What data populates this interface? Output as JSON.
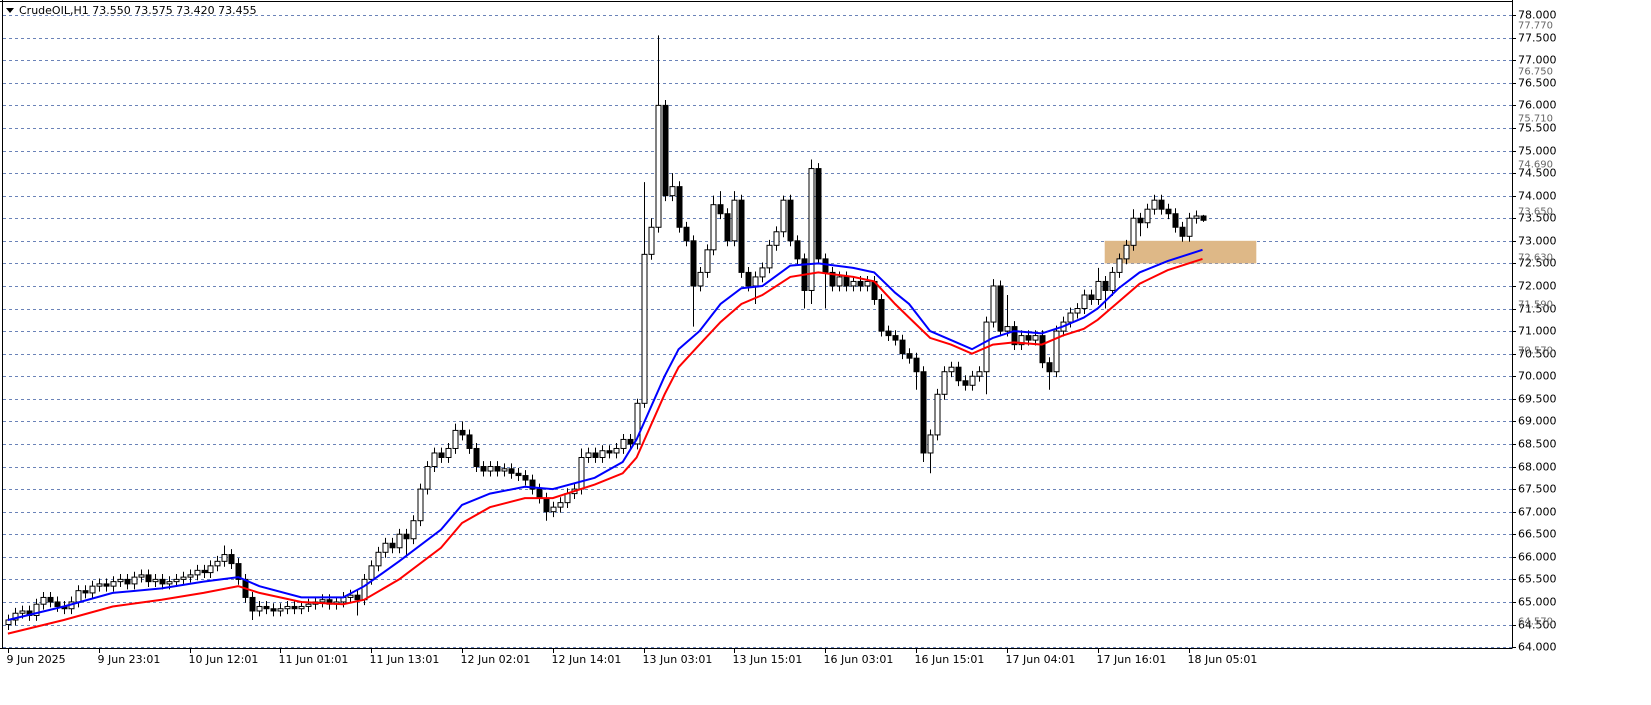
{
  "chart_data": {
    "type": "candlestick",
    "title": "CrudeOIL,H1  73.550 73.575 73.420 73.455",
    "up_color": "#ffffff",
    "down_color": "#000000",
    "outline_color": "#000000",
    "grid": true,
    "xlim": [
      -0.7,
      215.3
    ],
    "ylim": [
      63.98,
      78.29
    ],
    "xticks": [
      {
        "value": 0,
        "label": "9 Jun 2025"
      },
      {
        "value": 13,
        "label": "9 Jun 23:01"
      },
      {
        "value": 26,
        "label": "10 Jun 12:01"
      },
      {
        "value": 39,
        "label": "11 Jun 01:01"
      },
      {
        "value": 52,
        "label": "11 Jun 13:01"
      },
      {
        "value": 65,
        "label": "12 Jun 02:01"
      },
      {
        "value": 78,
        "label": "12 Jun 14:01"
      },
      {
        "value": 91,
        "label": "13 Jun 03:01"
      },
      {
        "value": 104,
        "label": "13 Jun 15:01"
      },
      {
        "value": 117,
        "label": "16 Jun 03:01"
      },
      {
        "value": 130,
        "label": "16 Jun 15:01"
      },
      {
        "value": 143,
        "label": "17 Jun 04:01"
      },
      {
        "value": 156,
        "label": "17 Jun 16:01"
      },
      {
        "value": 169,
        "label": "18 Jun 05:01"
      }
    ],
    "yticks": [
      {
        "value": 78,
        "label": "78.000"
      },
      {
        "value": 77.5,
        "label": "77.500"
      },
      {
        "value": 77,
        "label": "77.000"
      },
      {
        "value": 76.5,
        "label": "76.500"
      },
      {
        "value": 76,
        "label": "76.000"
      },
      {
        "value": 75.5,
        "label": "75.500"
      },
      {
        "value": 75,
        "label": "75.000"
      },
      {
        "value": 74.5,
        "label": "74.500"
      },
      {
        "value": 74,
        "label": "74.000"
      },
      {
        "value": 73.5,
        "label": "73.500"
      },
      {
        "value": 73,
        "label": "73.000"
      },
      {
        "value": 72.5,
        "label": "72.500"
      },
      {
        "value": 72,
        "label": "72.000"
      },
      {
        "value": 71.5,
        "label": "71.500"
      },
      {
        "value": 71,
        "label": "71.000"
      },
      {
        "value": 70.5,
        "label": "70.500"
      },
      {
        "value": 70,
        "label": "70.000"
      },
      {
        "value": 69.5,
        "label": "69.500"
      },
      {
        "value": 69,
        "label": "69.000"
      },
      {
        "value": 68.5,
        "label": "68.500"
      },
      {
        "value": 68,
        "label": "68.000"
      },
      {
        "value": 67.5,
        "label": "67.500"
      },
      {
        "value": 67,
        "label": "67.000"
      },
      {
        "value": 66.5,
        "label": "66.500"
      },
      {
        "value": 66,
        "label": "66.000"
      },
      {
        "value": 65.5,
        "label": "65.500"
      },
      {
        "value": 65,
        "label": "65.000"
      },
      {
        "value": 64.5,
        "label": "64.500"
      },
      {
        "value": 64,
        "label": "64.000"
      }
    ],
    "levels": [
      {
        "value": 77.77,
        "label": "77.770"
      },
      {
        "value": 76.75,
        "label": "76.750"
      },
      {
        "value": 75.71,
        "label": "75.710"
      },
      {
        "value": 74.69,
        "label": "74.690"
      },
      {
        "value": 73.65,
        "label": "73.650"
      },
      {
        "value": 72.63,
        "label": "72.630"
      },
      {
        "value": 71.59,
        "label": "71.590"
      },
      {
        "value": 70.57,
        "label": "70.570"
      },
      {
        "value": 64.57,
        "label": "64.570"
      }
    ],
    "zone": {
      "x": [
        157,
        178.7
      ],
      "y": [
        72.5,
        73.0
      ],
      "color": "#deb887"
    },
    "lines": [
      {
        "color": "#0000ff",
        "x": [
          0,
          8,
          15,
          22,
          28,
          33,
          36,
          42,
          48,
          51,
          56,
          62,
          65,
          69,
          74,
          78,
          84,
          88,
          90,
          94,
          96,
          99,
          102,
          105,
          108,
          112,
          116,
          121,
          124,
          127,
          129,
          132,
          135,
          138,
          141,
          144,
          148,
          151,
          154,
          156,
          159,
          162,
          166,
          171
        ],
        "values": [
          64.6,
          64.9,
          65.2,
          65.3,
          65.45,
          65.55,
          65.35,
          65.1,
          65.1,
          65.35,
          65.9,
          66.6,
          67.15,
          67.4,
          67.55,
          67.5,
          67.75,
          68.1,
          68.6,
          70.0,
          70.6,
          71.0,
          71.6,
          71.95,
          72.0,
          72.45,
          72.5,
          72.4,
          72.3,
          71.85,
          71.6,
          71.0,
          70.8,
          70.6,
          70.85,
          71.0,
          70.95,
          71.1,
          71.3,
          71.5,
          71.95,
          72.3,
          72.55,
          72.8
        ]
      },
      {
        "color": "#ff0000",
        "x": [
          0,
          8,
          15,
          22,
          28,
          33,
          36,
          42,
          48,
          51,
          56,
          62,
          65,
          69,
          74,
          78,
          84,
          88,
          90,
          94,
          96,
          99,
          102,
          105,
          108,
          112,
          116,
          121,
          124,
          127,
          129,
          132,
          135,
          138,
          141,
          144,
          148,
          151,
          154,
          156,
          159,
          162,
          166,
          171
        ],
        "values": [
          64.3,
          64.6,
          64.9,
          65.05,
          65.2,
          65.35,
          65.2,
          65.0,
          64.95,
          65.05,
          65.5,
          66.2,
          66.75,
          67.1,
          67.3,
          67.3,
          67.6,
          67.85,
          68.2,
          69.6,
          70.2,
          70.7,
          71.2,
          71.6,
          71.8,
          72.2,
          72.3,
          72.2,
          72.1,
          71.6,
          71.3,
          70.85,
          70.7,
          70.5,
          70.7,
          70.75,
          70.7,
          70.9,
          71.05,
          71.25,
          71.65,
          72.05,
          72.35,
          72.6
        ]
      }
    ],
    "ohlc": [
      [
        64.5,
        64.72,
        64.38,
        64.6
      ],
      [
        64.6,
        64.87,
        64.48,
        64.75
      ],
      [
        64.75,
        64.92,
        64.63,
        64.8
      ],
      [
        64.8,
        64.92,
        64.58,
        64.7
      ],
      [
        64.7,
        65.07,
        64.58,
        64.95
      ],
      [
        64.95,
        65.22,
        64.83,
        65.1
      ],
      [
        65.1,
        65.22,
        64.88,
        65.0
      ],
      [
        65.0,
        65.12,
        64.78,
        64.9
      ],
      [
        64.9,
        65.02,
        64.73,
        64.85
      ],
      [
        64.85,
        65.12,
        64.73,
        65.0
      ],
      [
        65.0,
        65.37,
        64.88,
        65.25
      ],
      [
        65.25,
        65.37,
        65.08,
        65.2
      ],
      [
        65.2,
        65.47,
        65.08,
        65.35
      ],
      [
        65.35,
        65.52,
        65.23,
        65.4
      ],
      [
        65.4,
        65.52,
        65.23,
        65.35
      ],
      [
        65.35,
        65.57,
        65.23,
        65.45
      ],
      [
        65.45,
        65.62,
        65.33,
        65.5
      ],
      [
        65.5,
        65.62,
        65.28,
        65.4
      ],
      [
        65.4,
        65.67,
        65.28,
        65.55
      ],
      [
        65.55,
        65.72,
        65.43,
        65.6
      ],
      [
        65.6,
        65.72,
        65.33,
        65.45
      ],
      [
        65.45,
        65.62,
        65.33,
        65.5
      ],
      [
        65.5,
        65.62,
        65.28,
        65.4
      ],
      [
        65.4,
        65.57,
        65.28,
        65.45
      ],
      [
        65.45,
        65.62,
        65.33,
        65.5
      ],
      [
        65.5,
        65.67,
        65.38,
        65.55
      ],
      [
        65.55,
        65.72,
        65.43,
        65.6
      ],
      [
        65.6,
        65.82,
        65.48,
        65.7
      ],
      [
        65.7,
        65.82,
        65.53,
        65.65
      ],
      [
        65.65,
        65.92,
        65.53,
        65.8
      ],
      [
        65.8,
        66.02,
        65.68,
        65.9
      ],
      [
        65.9,
        66.25,
        65.78,
        66.05
      ],
      [
        66.05,
        66.17,
        65.73,
        65.85
      ],
      [
        65.85,
        65.97,
        65.38,
        65.5
      ],
      [
        65.5,
        65.62,
        64.98,
        65.1
      ],
      [
        65.1,
        65.22,
        64.6,
        64.8
      ],
      [
        64.8,
        65.02,
        64.68,
        64.9
      ],
      [
        64.9,
        65.02,
        64.73,
        64.85
      ],
      [
        64.85,
        64.97,
        64.68,
        64.8
      ],
      [
        64.8,
        64.97,
        64.68,
        64.85
      ],
      [
        64.85,
        65.02,
        64.73,
        64.9
      ],
      [
        64.9,
        65.02,
        64.73,
        64.85
      ],
      [
        64.85,
        65.02,
        64.73,
        64.9
      ],
      [
        64.9,
        65.07,
        64.78,
        64.95
      ],
      [
        64.95,
        65.12,
        64.83,
        65.0
      ],
      [
        65.0,
        65.17,
        64.88,
        65.05
      ],
      [
        65.05,
        65.17,
        64.83,
        64.95
      ],
      [
        64.95,
        65.12,
        64.83,
        65.0
      ],
      [
        65.0,
        65.22,
        64.88,
        65.1
      ],
      [
        65.1,
        65.27,
        64.98,
        65.15
      ],
      [
        65.15,
        65.27,
        64.7,
        65.05
      ],
      [
        65.05,
        65.62,
        64.93,
        65.5
      ],
      [
        65.5,
        65.92,
        65.38,
        65.8
      ],
      [
        65.8,
        66.22,
        65.68,
        66.1
      ],
      [
        66.1,
        66.42,
        65.98,
        66.3
      ],
      [
        66.3,
        66.42,
        66.08,
        66.2
      ],
      [
        66.2,
        66.62,
        66.08,
        66.5
      ],
      [
        66.5,
        66.62,
        66.0,
        66.4
      ],
      [
        66.4,
        66.92,
        66.28,
        66.8
      ],
      [
        66.8,
        67.62,
        66.68,
        67.5
      ],
      [
        67.5,
        68.12,
        67.38,
        68.0
      ],
      [
        68.0,
        68.42,
        67.88,
        68.3
      ],
      [
        68.3,
        68.42,
        68.08,
        68.2
      ],
      [
        68.2,
        68.52,
        68.08,
        68.4
      ],
      [
        68.4,
        68.95,
        68.28,
        68.8
      ],
      [
        68.8,
        69.0,
        68.58,
        68.7
      ],
      [
        68.7,
        68.82,
        68.28,
        68.4
      ],
      [
        68.4,
        68.52,
        67.88,
        68.0
      ],
      [
        68.0,
        68.12,
        67.78,
        67.9
      ],
      [
        67.9,
        68.12,
        67.78,
        68.0
      ],
      [
        68.0,
        68.12,
        67.78,
        67.9
      ],
      [
        67.9,
        68.07,
        67.78,
        67.95
      ],
      [
        67.95,
        68.07,
        67.73,
        67.85
      ],
      [
        67.85,
        67.97,
        67.68,
        67.8
      ],
      [
        67.8,
        67.92,
        67.58,
        67.7
      ],
      [
        67.7,
        67.82,
        67.38,
        67.5
      ],
      [
        67.5,
        67.62,
        67.18,
        67.3
      ],
      [
        67.3,
        67.42,
        66.8,
        67.0
      ],
      [
        67.0,
        67.22,
        66.88,
        67.1
      ],
      [
        67.1,
        67.32,
        66.98,
        67.2
      ],
      [
        67.2,
        67.52,
        67.08,
        67.4
      ],
      [
        67.4,
        67.62,
        67.28,
        67.5
      ],
      [
        67.5,
        68.4,
        67.38,
        68.2
      ],
      [
        68.2,
        68.42,
        68.08,
        68.3
      ],
      [
        68.3,
        68.42,
        68.08,
        68.2
      ],
      [
        68.2,
        68.47,
        68.08,
        68.35
      ],
      [
        68.35,
        68.47,
        68.18,
        68.3
      ],
      [
        68.3,
        68.52,
        68.18,
        68.4
      ],
      [
        68.4,
        68.72,
        68.28,
        68.6
      ],
      [
        68.6,
        68.72,
        68.38,
        68.5
      ],
      [
        68.5,
        69.5,
        68.38,
        69.4
      ],
      [
        69.4,
        74.3,
        69.3,
        72.7
      ],
      [
        72.7,
        73.5,
        72.58,
        73.3
      ],
      [
        73.3,
        77.55,
        73.18,
        76.0
      ],
      [
        76.0,
        76.12,
        73.88,
        74.0
      ],
      [
        74.0,
        74.5,
        73.88,
        74.2
      ],
      [
        74.2,
        74.32,
        73.18,
        73.3
      ],
      [
        73.3,
        73.42,
        72.88,
        73.0
      ],
      [
        73.0,
        73.12,
        71.1,
        72.0
      ],
      [
        72.0,
        72.42,
        71.88,
        72.3
      ],
      [
        72.3,
        72.92,
        72.18,
        72.8
      ],
      [
        72.8,
        74.0,
        72.68,
        73.8
      ],
      [
        73.8,
        74.1,
        73.48,
        73.6
      ],
      [
        73.6,
        73.72,
        72.88,
        73.0
      ],
      [
        73.0,
        74.1,
        72.88,
        73.9
      ],
      [
        73.9,
        74.02,
        72.18,
        72.3
      ],
      [
        72.3,
        72.42,
        71.88,
        72.0
      ],
      [
        72.0,
        72.32,
        71.6,
        72.2
      ],
      [
        72.2,
        72.52,
        72.08,
        72.4
      ],
      [
        72.4,
        73.02,
        72.28,
        72.9
      ],
      [
        72.9,
        73.32,
        72.78,
        73.2
      ],
      [
        73.2,
        74.0,
        73.08,
        73.9
      ],
      [
        73.9,
        74.02,
        72.88,
        73.0
      ],
      [
        73.0,
        73.12,
        72.48,
        72.6
      ],
      [
        72.6,
        72.72,
        71.5,
        71.9
      ],
      [
        71.9,
        74.8,
        71.6,
        74.6
      ],
      [
        74.6,
        74.72,
        72.48,
        72.6
      ],
      [
        72.6,
        72.72,
        71.5,
        72.3
      ],
      [
        72.3,
        72.42,
        71.88,
        72.0
      ],
      [
        72.0,
        72.32,
        71.88,
        72.2
      ],
      [
        72.2,
        72.32,
        71.88,
        72.0
      ],
      [
        72.0,
        72.22,
        71.88,
        72.1
      ],
      [
        72.1,
        72.22,
        71.88,
        72.0
      ],
      [
        72.0,
        72.22,
        71.88,
        72.1
      ],
      [
        72.1,
        72.22,
        71.58,
        71.7
      ],
      [
        71.7,
        71.82,
        70.88,
        71.0
      ],
      [
        71.0,
        71.12,
        70.78,
        70.9
      ],
      [
        70.9,
        71.02,
        70.68,
        70.8
      ],
      [
        70.8,
        70.92,
        70.38,
        70.5
      ],
      [
        70.5,
        70.62,
        70.28,
        70.4
      ],
      [
        70.4,
        70.52,
        69.7,
        70.1
      ],
      [
        70.1,
        70.22,
        68.1,
        68.3
      ],
      [
        68.3,
        68.82,
        67.85,
        68.7
      ],
      [
        68.7,
        69.72,
        68.58,
        69.6
      ],
      [
        69.6,
        70.22,
        69.48,
        70.1
      ],
      [
        70.1,
        70.32,
        69.98,
        70.2
      ],
      [
        70.2,
        70.32,
        69.78,
        69.9
      ],
      [
        69.9,
        70.02,
        69.68,
        69.8
      ],
      [
        69.8,
        70.12,
        69.68,
        70.0
      ],
      [
        70.0,
        70.22,
        69.88,
        70.1
      ],
      [
        70.1,
        71.32,
        69.6,
        71.2
      ],
      [
        71.2,
        72.15,
        71.08,
        72.0
      ],
      [
        72.0,
        72.12,
        70.88,
        71.0
      ],
      [
        71.0,
        71.8,
        70.88,
        71.1
      ],
      [
        71.1,
        71.22,
        70.58,
        70.7
      ],
      [
        70.7,
        71.02,
        70.58,
        70.9
      ],
      [
        70.9,
        71.02,
        70.68,
        70.8
      ],
      [
        70.8,
        71.02,
        70.68,
        70.9
      ],
      [
        70.9,
        71.02,
        70.18,
        70.3
      ],
      [
        70.3,
        70.42,
        69.7,
        70.1
      ],
      [
        70.1,
        71.12,
        69.98,
        71.0
      ],
      [
        71.0,
        71.32,
        70.88,
        71.2
      ],
      [
        71.2,
        71.52,
        71.08,
        71.4
      ],
      [
        71.4,
        71.62,
        71.28,
        71.5
      ],
      [
        71.5,
        71.92,
        71.38,
        71.8
      ],
      [
        71.8,
        71.92,
        71.58,
        71.7
      ],
      [
        71.7,
        72.4,
        71.58,
        72.1
      ],
      [
        72.1,
        72.22,
        71.5,
        71.9
      ],
      [
        71.9,
        72.42,
        71.78,
        72.3
      ],
      [
        72.3,
        72.72,
        72.18,
        72.6
      ],
      [
        72.6,
        73.02,
        72.48,
        72.9
      ],
      [
        72.9,
        73.7,
        72.78,
        73.5
      ],
      [
        73.5,
        73.62,
        73.1,
        73.4
      ],
      [
        73.4,
        73.82,
        73.28,
        73.7
      ],
      [
        73.7,
        74.02,
        73.58,
        73.9
      ],
      [
        73.9,
        74.02,
        73.58,
        73.7
      ],
      [
        73.7,
        73.82,
        73.48,
        73.6
      ],
      [
        73.6,
        73.72,
        73.18,
        73.3
      ],
      [
        73.3,
        73.42,
        72.98,
        73.1
      ],
      [
        73.1,
        73.62,
        72.98,
        73.5
      ],
      [
        73.5,
        73.67,
        73.38,
        73.55
      ],
      [
        73.55,
        73.575,
        73.42,
        73.455
      ]
    ]
  }
}
